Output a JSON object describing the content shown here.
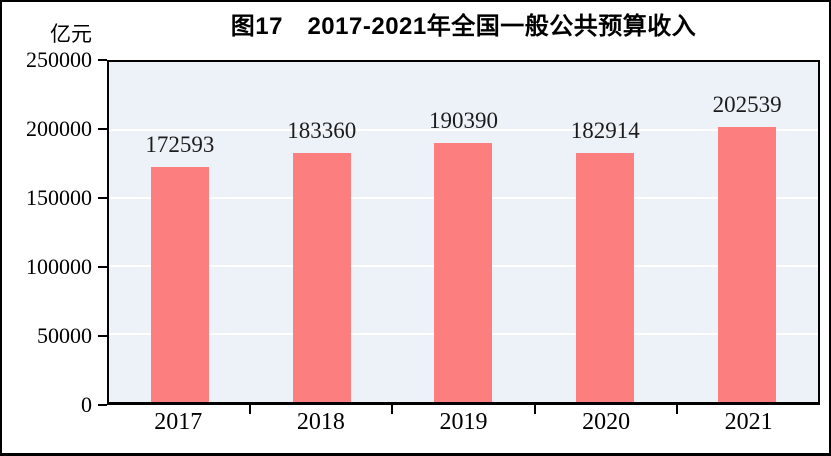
{
  "figure": {
    "title": "图17　2017-2021年全国一般公共预算收入",
    "unit_label": "亿元"
  },
  "chart_data": {
    "type": "bar",
    "title": "图17 2017-2021年全国一般公共预算收入",
    "unit": "亿元",
    "categories": [
      "2017",
      "2018",
      "2019",
      "2020",
      "2021"
    ],
    "values": [
      172593,
      183360,
      190390,
      182914,
      202539
    ],
    "data_labels": [
      "172593",
      "183360",
      "190390",
      "182914",
      "202539"
    ],
    "xlabel": "",
    "ylabel": "亿元",
    "ylim": [
      0,
      250000
    ],
    "yticks": [
      0,
      50000,
      100000,
      150000,
      200000,
      250000
    ],
    "ytick_labels": [
      "0",
      "50000",
      "100000",
      "150000",
      "200000",
      "250000"
    ],
    "grid": "horizontal",
    "legend": "none",
    "colors": {
      "bar_fill": "#fd7e7e",
      "plot_background": "#ecf2f8",
      "gridline": "#ffffff",
      "axis_and_text": "#000000",
      "figure_background": "#ffffff"
    }
  }
}
